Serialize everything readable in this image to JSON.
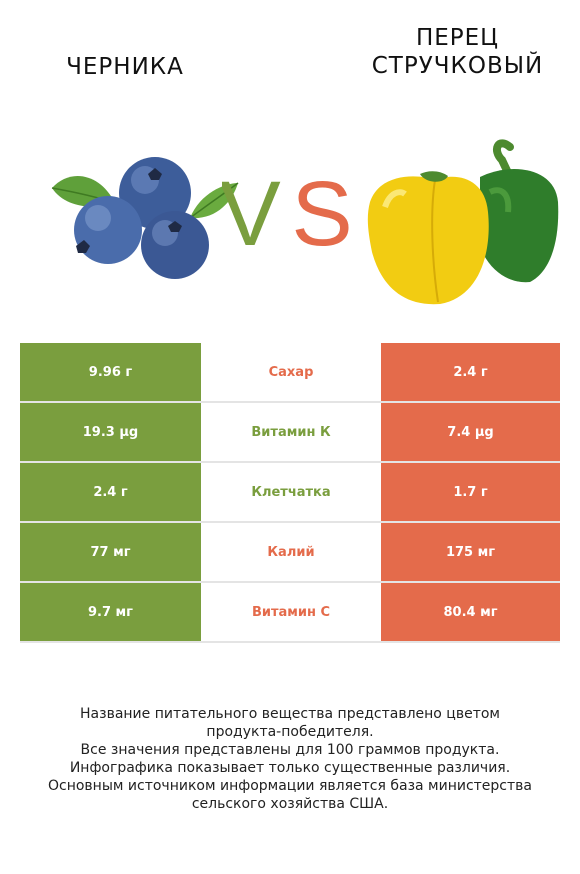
{
  "header": {
    "left_title": "Черника",
    "right_title_line1": "Перец",
    "right_title_line2": "стручковый",
    "vs_text": "VS"
  },
  "colors": {
    "left": "#7a9e3e",
    "right": "#e46b4b"
  },
  "rows": [
    {
      "left": "9.96 г",
      "nutrient": "Сахар",
      "right": "2.4 г",
      "winner": "right"
    },
    {
      "left": "19.3 µg",
      "nutrient": "Витамин К",
      "right": "7.4 µg",
      "winner": "left"
    },
    {
      "left": "2.4 г",
      "nutrient": "Клетчатка",
      "right": "1.7 г",
      "winner": "left"
    },
    {
      "left": "77 мг",
      "nutrient": "Калий",
      "right": "175 мг",
      "winner": "right"
    },
    {
      "left": "9.7 мг",
      "nutrient": "Витамин C",
      "right": "80.4 мг",
      "winner": "right"
    }
  ],
  "footer": {
    "line1": "Название питательного вещества представлено цветом",
    "line2": "продукта-победителя.",
    "line3": "Все значения представлены для 100 граммов продукта.",
    "line4": "Инфографика показывает только существенные различия.",
    "line5": "Основным источником информации является база министерства",
    "line6": "сельского хозяйства США."
  }
}
